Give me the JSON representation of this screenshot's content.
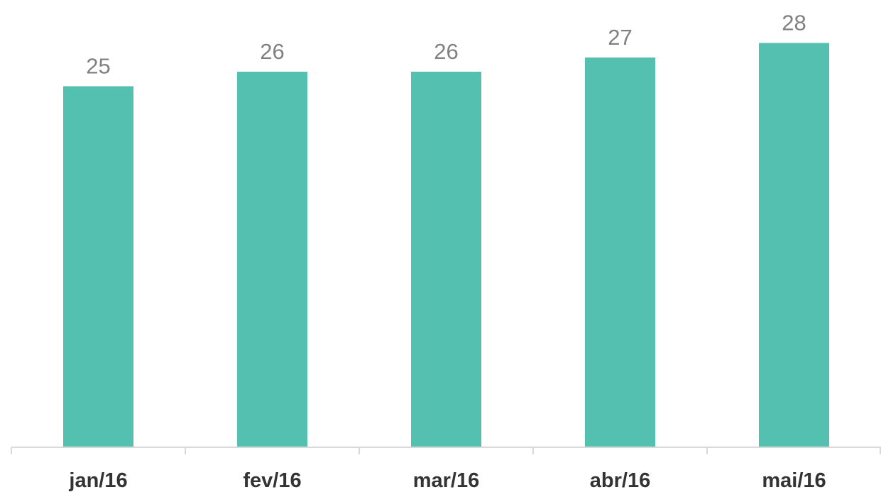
{
  "chart_data": {
    "type": "bar",
    "categories": [
      "jan/16",
      "fev/16",
      "mar/16",
      "abr/16",
      "mai/16"
    ],
    "values": [
      25,
      26,
      26,
      27,
      28
    ],
    "data_labels": [
      "25",
      "26",
      "26",
      "27",
      "28"
    ],
    "title": "",
    "xlabel": "",
    "ylabel": "",
    "ylim": [
      0,
      31
    ],
    "grid": false,
    "legend": "none",
    "colors": {
      "bar": "#54C0AF",
      "data_label": "#808080",
      "category_label": "#333333",
      "axis": "#D9D9D9"
    }
  }
}
